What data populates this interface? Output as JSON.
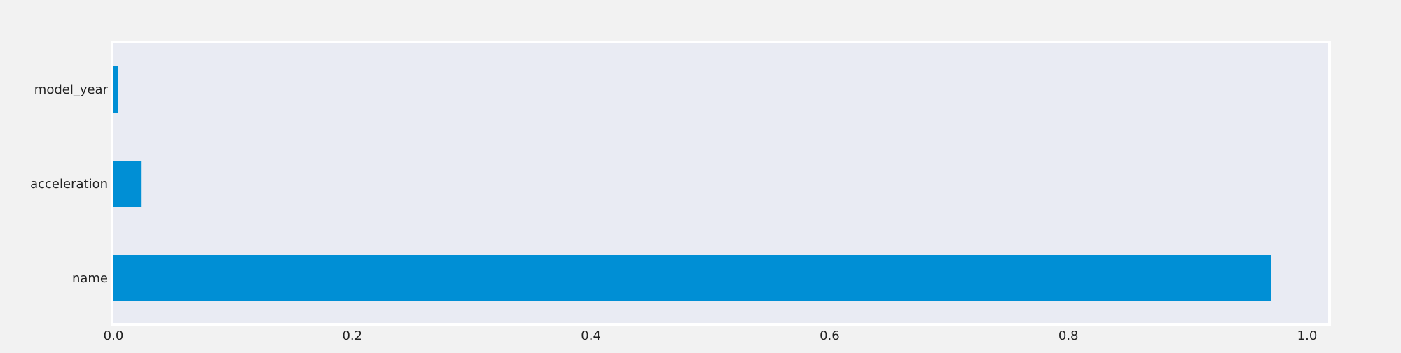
{
  "chart_data": {
    "type": "bar",
    "orientation": "horizontal",
    "title": "",
    "xlabel": "",
    "ylabel": "",
    "categories": [
      "name",
      "acceleration",
      "model_year"
    ],
    "values": [
      0.97,
      0.023,
      0.004
    ],
    "xlim": [
      0.0,
      1.02
    ],
    "xticks": [
      0.0,
      0.2,
      0.4,
      0.6,
      0.8,
      1.0
    ],
    "xtick_labels": [
      "0.0",
      "0.2",
      "0.4",
      "0.6",
      "0.8",
      "1.0"
    ],
    "grid": false,
    "colors": {
      "bar": "#008fd5",
      "plot_background": "#e9ebf3",
      "figure_background": "#f2f2f2",
      "frame": "#ffffff",
      "text": "#222222"
    }
  }
}
